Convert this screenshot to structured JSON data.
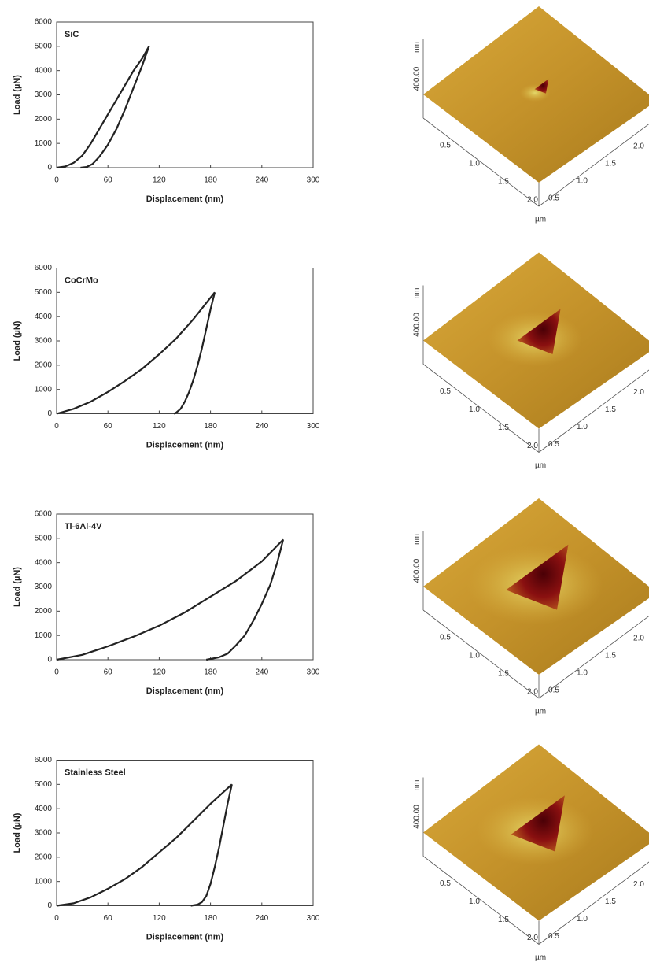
{
  "chart_data": [
    {
      "type": "line",
      "annotation": "SiC",
      "x_label": "Displacement (nm)",
      "y_label": "Load (µN)",
      "xlim": [
        0,
        300
      ],
      "ylim": [
        0,
        6000
      ],
      "xticks": [
        0,
        60,
        120,
        180,
        240,
        300
      ],
      "yticks": [
        0,
        1000,
        2000,
        3000,
        4000,
        5000,
        6000
      ],
      "series": [
        {
          "color": "#222222",
          "x": [
            0,
            10,
            20,
            30,
            40,
            50,
            60,
            70,
            80,
            90,
            100,
            108
          ],
          "values": [
            0,
            50,
            200,
            500,
            1000,
            1600,
            2200,
            2800,
            3400,
            4000,
            4500,
            5000
          ]
        },
        {
          "color": "#222222",
          "x": [
            108,
            100,
            90,
            80,
            70,
            60,
            50,
            42,
            35,
            28
          ],
          "values": [
            5000,
            4200,
            3300,
            2400,
            1600,
            950,
            450,
            150,
            30,
            0
          ]
        }
      ]
    },
    {
      "type": "line",
      "annotation": "CoCrMo",
      "x_label": "Displacement (nm)",
      "y_label": "Load (µN)",
      "xlim": [
        0,
        300
      ],
      "ylim": [
        0,
        6000
      ],
      "xticks": [
        0,
        60,
        120,
        180,
        240,
        300
      ],
      "yticks": [
        0,
        1000,
        2000,
        3000,
        4000,
        5000,
        6000
      ],
      "series": [
        {
          "color": "#222222",
          "x": [
            0,
            20,
            40,
            60,
            80,
            100,
            120,
            140,
            160,
            185
          ],
          "values": [
            0,
            200,
            500,
            900,
            1350,
            1850,
            2450,
            3100,
            3900,
            5000
          ]
        },
        {
          "color": "#222222",
          "x": [
            185,
            180,
            175,
            170,
            165,
            160,
            155,
            150,
            145,
            140,
            137
          ],
          "values": [
            5000,
            4300,
            3500,
            2700,
            2000,
            1400,
            900,
            500,
            200,
            50,
            0
          ]
        }
      ]
    },
    {
      "type": "line",
      "annotation": "Ti-6Al-4V",
      "x_label": "Displacement (nm)",
      "y_label": "Load (µN)",
      "xlim": [
        0,
        300
      ],
      "ylim": [
        0,
        6000
      ],
      "xticks": [
        0,
        60,
        120,
        180,
        240,
        300
      ],
      "yticks": [
        0,
        1000,
        2000,
        3000,
        4000,
        5000,
        6000
      ],
      "series": [
        {
          "color": "#222222",
          "x": [
            0,
            30,
            60,
            90,
            120,
            150,
            180,
            210,
            240,
            265
          ],
          "values": [
            0,
            200,
            550,
            950,
            1400,
            1950,
            2600,
            3250,
            4050,
            4950
          ]
        },
        {
          "color": "#222222",
          "x": [
            265,
            258,
            250,
            240,
            230,
            220,
            210,
            200,
            190,
            175
          ],
          "values": [
            4950,
            4000,
            3100,
            2300,
            1600,
            1000,
            600,
            250,
            100,
            0
          ]
        }
      ]
    },
    {
      "type": "line",
      "annotation": "Stainless Steel",
      "x_label": "Displacement (nm)",
      "y_label": "Load (µN)",
      "xlim": [
        0,
        300
      ],
      "ylim": [
        0,
        6000
      ],
      "xticks": [
        0,
        60,
        120,
        180,
        240,
        300
      ],
      "yticks": [
        0,
        1000,
        2000,
        3000,
        4000,
        5000,
        6000
      ],
      "series": [
        {
          "color": "#222222",
          "x": [
            0,
            20,
            40,
            60,
            80,
            100,
            120,
            140,
            160,
            180,
            205
          ],
          "values": [
            0,
            100,
            350,
            700,
            1100,
            1600,
            2200,
            2800,
            3500,
            4200,
            5000
          ]
        },
        {
          "color": "#222222",
          "x": [
            205,
            200,
            195,
            190,
            185,
            180,
            175,
            170,
            165,
            157
          ],
          "values": [
            5000,
            4200,
            3300,
            2400,
            1600,
            900,
            400,
            150,
            50,
            0
          ]
        }
      ]
    }
  ],
  "afm_images": [
    {
      "z_value": "400.00",
      "z_unit": "nm",
      "left_ticks": [
        "0.5",
        "1.0",
        "1.5",
        "2.0"
      ],
      "right_ticks": [
        "0.5",
        "1.0",
        "1.5",
        "2.0"
      ],
      "unit": "µm"
    },
    {
      "z_value": "400.00",
      "z_unit": "nm",
      "left_ticks": [
        "0.5",
        "1.0",
        "1.5",
        "2.0"
      ],
      "right_ticks": [
        "0.5",
        "1.0",
        "1.5",
        "2.0"
      ],
      "unit": "µm"
    },
    {
      "z_value": "400.00",
      "z_unit": "nm",
      "left_ticks": [
        "0.5",
        "1.0",
        "1.5",
        "2.0"
      ],
      "right_ticks": [
        "0.5",
        "1.0",
        "1.5",
        "2.0"
      ],
      "unit": "µm"
    },
    {
      "z_value": "400.00",
      "z_unit": "nm",
      "left_ticks": [
        "0.5",
        "1.0",
        "1.5",
        "2.0"
      ],
      "right_ticks": [
        "0.5",
        "1.0",
        "1.5",
        "2.0"
      ],
      "unit": "µm"
    }
  ]
}
